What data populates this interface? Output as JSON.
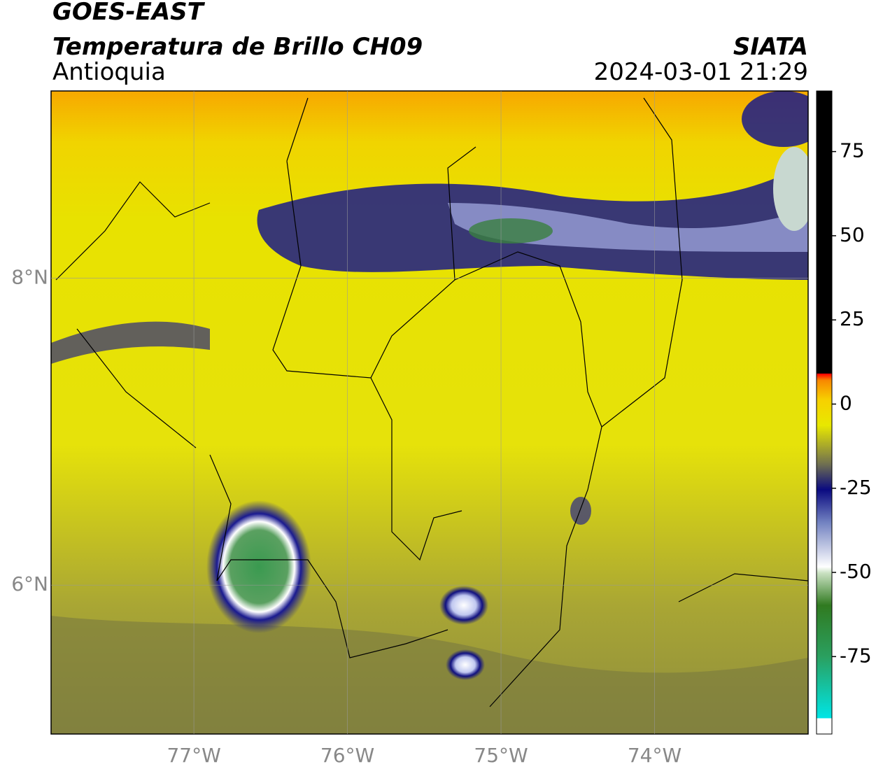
{
  "chart_data": {
    "type": "map",
    "title": "GOES-EAST",
    "subtitle": "Temperatura de Brillo CH09",
    "region": "Antioquia",
    "source": "SIATA",
    "datetime": "2024-03-01 21:29",
    "xlim": [
      -77.93,
      -73.0
    ],
    "ylim": [
      5.03,
      9.22
    ],
    "xticks": [
      {
        "value": -77,
        "label": "77°W"
      },
      {
        "value": -76,
        "label": "76°W"
      },
      {
        "value": -75,
        "label": "75°W"
      },
      {
        "value": -74,
        "label": "74°W"
      }
    ],
    "yticks": [
      {
        "value": 6,
        "label": "6°N"
      },
      {
        "value": 8,
        "label": "8°N"
      }
    ],
    "grid": true,
    "colorbar": {
      "lim": [
        -98,
        93
      ],
      "ticks": [
        -75,
        -50,
        -25,
        0,
        25,
        50,
        75
      ]
    }
  }
}
